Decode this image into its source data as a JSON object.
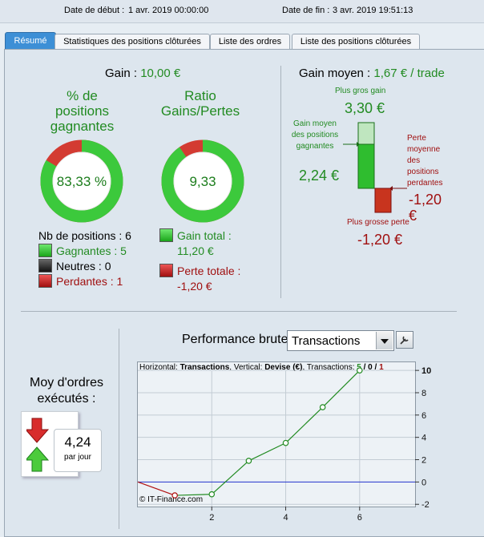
{
  "header": {
    "start_label": "Date de début :",
    "start_value": "1 avr. 2019 00:00:00",
    "end_label": "Date de fin :",
    "end_value": "3 avr. 2019 19:51:13"
  },
  "tabs": [
    {
      "label": "Résumé",
      "active": true
    },
    {
      "label": "Statistiques des positions clôturées",
      "active": false
    },
    {
      "label": "Liste des ordres",
      "active": false
    },
    {
      "label": "Liste des positions clôturées",
      "active": false
    }
  ],
  "gain": {
    "label": "Gain :",
    "value": "10,00 €"
  },
  "win_pct": {
    "title": "% de positions gagnantes",
    "value_text": "83,33 %",
    "fraction": 0.8333
  },
  "ratio": {
    "title": "Ratio Gains/Pertes",
    "value_text": "9,33",
    "fraction": 0.9032
  },
  "positions": {
    "count_label": "Nb de positions : 6",
    "winning": "Gagnantes : 5",
    "neutral": "Neutres : 0",
    "losing": "Perdantes : 1"
  },
  "totals": {
    "gain_label": "Gain total :",
    "gain_value": "11,20 €",
    "loss_label": "Perte totale :",
    "loss_value": "-1,20 €"
  },
  "avg_gain": {
    "label": "Gain moyen :",
    "value": "1,67 € / trade"
  },
  "bar_chart": {
    "max_gain_label": "Plus gros gain",
    "max_gain_value": "3,30 €",
    "avg_win_label": "Gain moyen des positions gagnantes",
    "avg_win_value": "2,24 €",
    "avg_loss_label": "Perte moyenne des positions perdantes",
    "avg_loss_value": "-1,20 €",
    "max_loss_label": "Plus grosse perte",
    "max_loss_value": "-1,20 €"
  },
  "orders": {
    "title": "Moy d'ordres exécutés :",
    "value": "4,24",
    "unit": "par jour"
  },
  "performance": {
    "label": "Performance brute",
    "select_value": "Transactions",
    "info_prefix": "Horizontal: ",
    "info_h": "Transactions",
    "info_mid": ", Vertical: ",
    "info_v": "Devise (€)",
    "info_tx": ", Transactions: ",
    "info_w": "5",
    "info_sep1": " / ",
    "info_n": "0",
    "info_sep2": " / ",
    "info_l": "1",
    "watermark": "© IT-Finance.com"
  },
  "chart_data": {
    "type": "line",
    "x": [
      0,
      1,
      2,
      3,
      4,
      5,
      6
    ],
    "y": [
      0,
      -1.2,
      -1.1,
      1.9,
      3.5,
      6.7,
      10.0
    ],
    "xlim": [
      0,
      7.5
    ],
    "ylim": [
      -2.2,
      10.8
    ],
    "x_ticks": [
      2,
      4,
      6
    ],
    "y_ticks": [
      -2,
      0,
      2,
      4,
      6,
      8,
      10
    ],
    "colors": {
      "loss": "#b01010",
      "gain": "#228b22",
      "zero_line": "#2233cc"
    }
  }
}
